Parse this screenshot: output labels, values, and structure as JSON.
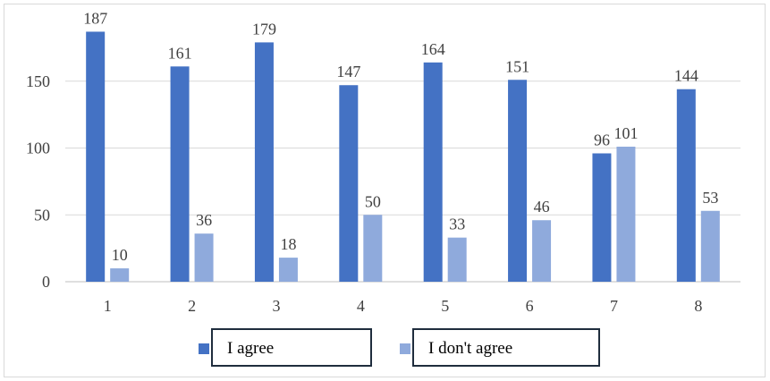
{
  "chart_data": {
    "type": "bar",
    "categories": [
      "1",
      "2",
      "3",
      "4",
      "5",
      "6",
      "7",
      "8"
    ],
    "series": [
      {
        "name": "I agree",
        "color": "#4472c4",
        "values": [
          187,
          161,
          179,
          147,
          164,
          151,
          96,
          144
        ]
      },
      {
        "name": "I don't agree",
        "color": "#8faadc",
        "values": [
          10,
          36,
          18,
          50,
          33,
          46,
          101,
          53
        ]
      }
    ],
    "ylim": [
      0,
      200
    ],
    "yticks": [
      0,
      50,
      100,
      150
    ],
    "grid": true,
    "legend_position": "bottom",
    "data_labels": true
  }
}
